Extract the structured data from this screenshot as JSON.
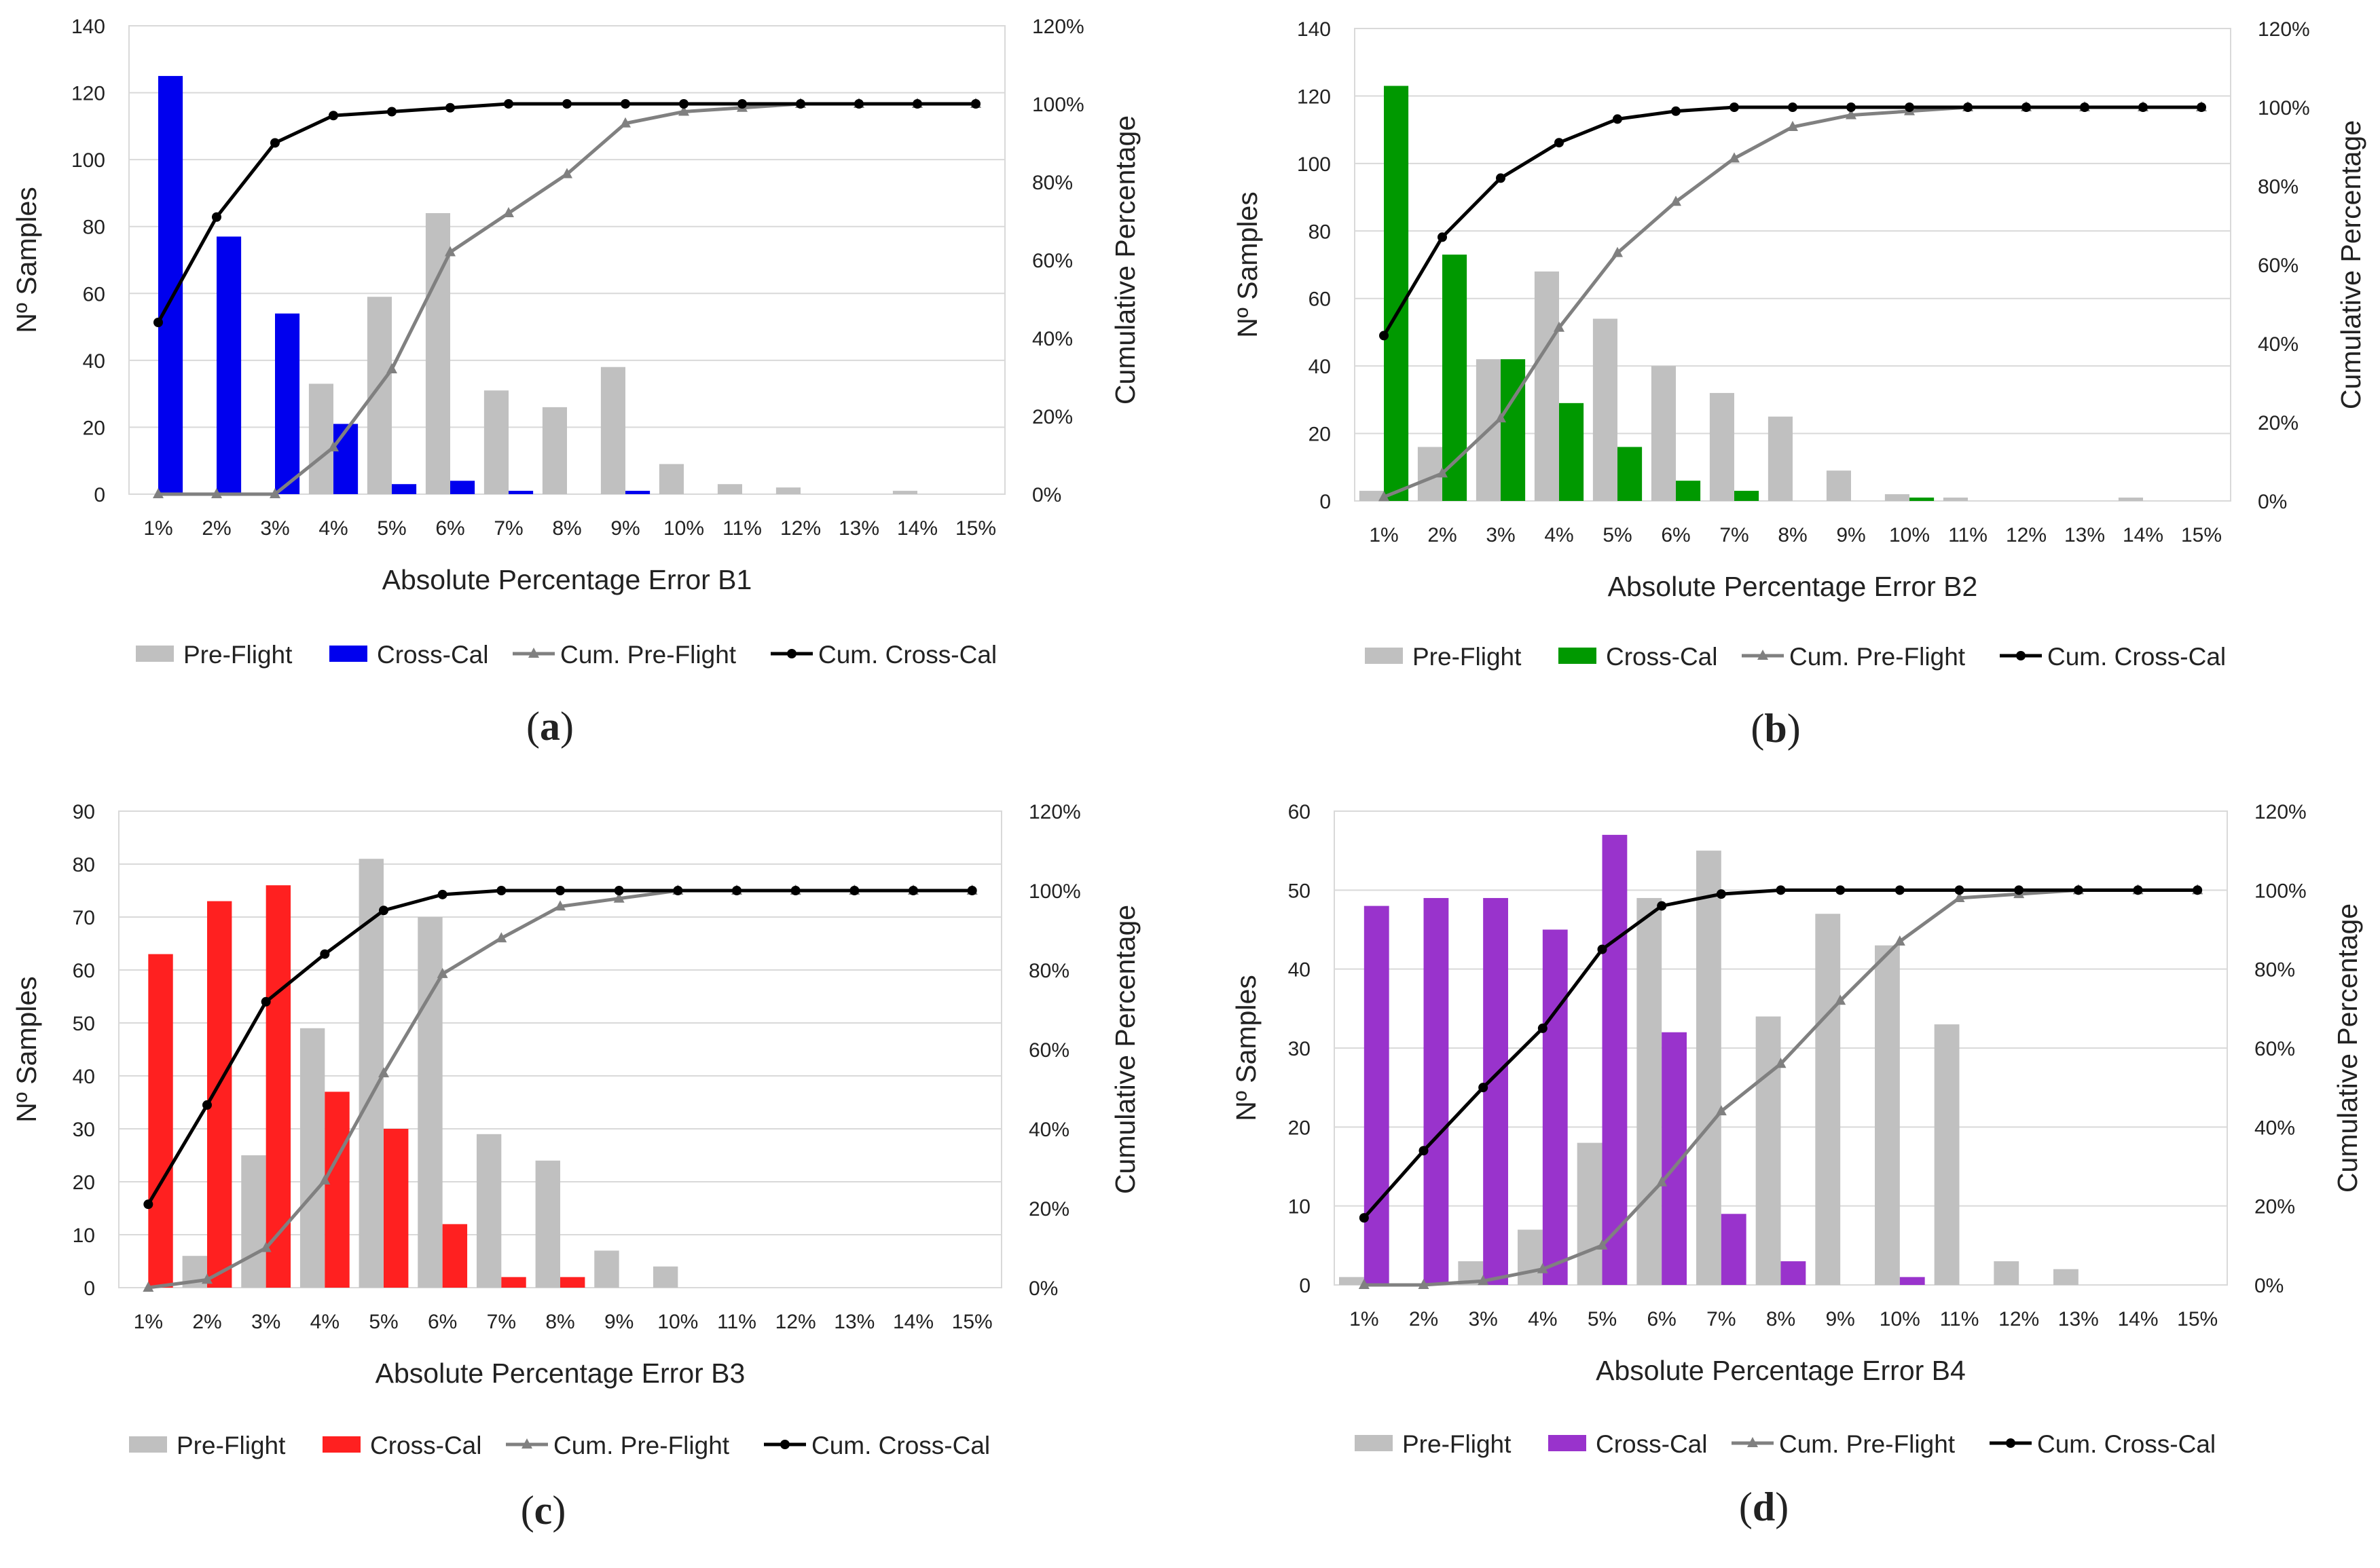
{
  "figure": {
    "panels": [
      {
        "id": "a",
        "label_open": "(",
        "label_letter": "a",
        "label_close": ")"
      },
      {
        "id": "b",
        "label_open": "(",
        "label_letter": "b",
        "label_close": ")"
      },
      {
        "id": "c",
        "label_open": "(",
        "label_letter": "c",
        "label_close": ")"
      },
      {
        "id": "d",
        "label_open": "(",
        "label_letter": "d",
        "label_close": ")"
      }
    ]
  },
  "chart_data": [
    {
      "type": "bar",
      "title": "",
      "xlabel": "Absolute Percentage Error B1",
      "ylabel": "Nº Samples",
      "y2label": "Cumulative Percentage",
      "categories": [
        "1%",
        "2%",
        "3%",
        "4%",
        "5%",
        "6%",
        "7%",
        "8%",
        "9%",
        "10%",
        "11%",
        "12%",
        "13%",
        "14%",
        "15%"
      ],
      "ylim": [
        0,
        140
      ],
      "yticks": [
        0,
        20,
        40,
        60,
        80,
        100,
        120,
        140
      ],
      "y2lim": [
        0,
        120
      ],
      "y2ticks": [
        "0%",
        "20%",
        "40%",
        "60%",
        "80%",
        "100%",
        "120%"
      ],
      "crosscal_color": "#0000ee",
      "series": [
        {
          "name": "Pre-Flight",
          "kind": "bar",
          "color": "#c0c0c0",
          "values": [
            0,
            0,
            0,
            33,
            59,
            84,
            31,
            26,
            38,
            9,
            3,
            2,
            0,
            1,
            0
          ]
        },
        {
          "name": "Cross-Cal",
          "kind": "bar",
          "color": "#0000ee",
          "values": [
            125,
            77,
            54,
            21,
            3,
            4,
            1,
            0,
            1,
            0,
            0,
            0,
            0,
            0,
            0
          ]
        },
        {
          "name": "Cum. Pre-Flight",
          "kind": "line",
          "marker": "triangle",
          "color": "#808080",
          "values": [
            0,
            0,
            0,
            12,
            32,
            62,
            72,
            82,
            95,
            98,
            99,
            100,
            100,
            100,
            100
          ]
        },
        {
          "name": "Cum. Cross-Cal",
          "kind": "line",
          "marker": "circle",
          "color": "#000000",
          "values": [
            44,
            71,
            90,
            97,
            98,
            99,
            100,
            100,
            100,
            100,
            100,
            100,
            100,
            100,
            100
          ]
        }
      ],
      "legend": [
        "Pre-Flight",
        "Cross-Cal",
        "Cum. Pre-Flight",
        "Cum. Cross-Cal"
      ],
      "legend_position": "bottom"
    },
    {
      "type": "bar",
      "title": "",
      "xlabel": "Absolute Percentage Error B2",
      "ylabel": "Nº Samples",
      "y2label": "Cumulative Percentage",
      "categories": [
        "1%",
        "2%",
        "3%",
        "4%",
        "5%",
        "6%",
        "7%",
        "8%",
        "9%",
        "10%",
        "11%",
        "12%",
        "13%",
        "14%",
        "15%"
      ],
      "ylim": [
        0,
        140
      ],
      "yticks": [
        0,
        20,
        40,
        60,
        80,
        100,
        120,
        140
      ],
      "y2lim": [
        0,
        120
      ],
      "y2ticks": [
        "0%",
        "20%",
        "40%",
        "60%",
        "80%",
        "100%",
        "120%"
      ],
      "crosscal_color": "#009900",
      "series": [
        {
          "name": "Pre-Flight",
          "kind": "bar",
          "color": "#c0c0c0",
          "values": [
            3,
            16,
            42,
            68,
            54,
            40,
            32,
            25,
            9,
            2,
            1,
            0,
            0,
            1,
            0
          ]
        },
        {
          "name": "Cross-Cal",
          "kind": "bar",
          "color": "#009900",
          "values": [
            123,
            73,
            42,
            29,
            16,
            6,
            3,
            0,
            0,
            1,
            0,
            0,
            0,
            0,
            0
          ]
        },
        {
          "name": "Cum. Pre-Flight",
          "kind": "line",
          "marker": "triangle",
          "color": "#808080",
          "values": [
            1,
            7,
            21,
            44,
            63,
            76,
            87,
            95,
            98,
            99,
            100,
            100,
            100,
            100,
            100
          ]
        },
        {
          "name": "Cum. Cross-Cal",
          "kind": "line",
          "marker": "circle",
          "color": "#000000",
          "values": [
            42,
            67,
            82,
            91,
            97,
            99,
            100,
            100,
            100,
            100,
            100,
            100,
            100,
            100,
            100
          ]
        }
      ],
      "legend": [
        "Pre-Flight",
        "Cross-Cal",
        "Cum. Pre-Flight",
        "Cum. Cross-Cal"
      ],
      "legend_position": "bottom"
    },
    {
      "type": "bar",
      "title": "",
      "xlabel": "Absolute Percentage Error B3",
      "ylabel": "Nº Samples",
      "y2label": "Cumulative Percentage",
      "categories": [
        "1%",
        "2%",
        "3%",
        "4%",
        "5%",
        "6%",
        "7%",
        "8%",
        "9%",
        "10%",
        "11%",
        "12%",
        "13%",
        "14%",
        "15%"
      ],
      "ylim": [
        0,
        90
      ],
      "yticks": [
        0,
        10,
        20,
        30,
        40,
        50,
        60,
        70,
        80,
        90
      ],
      "y2lim": [
        0,
        120
      ],
      "y2ticks": [
        "0%",
        "20%",
        "40%",
        "60%",
        "80%",
        "100%",
        "120%"
      ],
      "crosscal_color": "#ff2020",
      "series": [
        {
          "name": "Pre-Flight",
          "kind": "bar",
          "color": "#c0c0c0",
          "values": [
            0,
            6,
            25,
            49,
            81,
            70,
            29,
            24,
            7,
            4,
            0,
            0,
            0,
            0,
            0
          ]
        },
        {
          "name": "Cross-Cal",
          "kind": "bar",
          "color": "#ff2020",
          "values": [
            63,
            73,
            76,
            37,
            30,
            12,
            2,
            2,
            0,
            0,
            0,
            0,
            0,
            0,
            0
          ]
        },
        {
          "name": "Cum. Pre-Flight",
          "kind": "line",
          "marker": "triangle",
          "color": "#808080",
          "values": [
            0,
            2,
            10,
            27,
            54,
            79,
            88,
            96,
            98,
            100,
            100,
            100,
            100,
            100,
            100
          ]
        },
        {
          "name": "Cum. Cross-Cal",
          "kind": "line",
          "marker": "circle",
          "color": "#000000",
          "values": [
            21,
            46,
            72,
            84,
            95,
            99,
            100,
            100,
            100,
            100,
            100,
            100,
            100,
            100,
            100
          ]
        }
      ],
      "legend": [
        "Pre-Flight",
        "Cross-Cal",
        "Cum. Pre-Flight",
        "Cum. Cross-Cal"
      ],
      "legend_position": "bottom"
    },
    {
      "type": "bar",
      "title": "",
      "xlabel": "Absolute Percentage Error B4",
      "ylabel": "Nº Samples",
      "y2label": "Cumulative Percentage",
      "categories": [
        "1%",
        "2%",
        "3%",
        "4%",
        "5%",
        "6%",
        "7%",
        "8%",
        "9%",
        "10%",
        "11%",
        "12%",
        "13%",
        "14%",
        "15%"
      ],
      "ylim": [
        0,
        60
      ],
      "yticks": [
        0,
        10,
        20,
        30,
        40,
        50,
        60
      ],
      "y2lim": [
        0,
        120
      ],
      "y2ticks": [
        "0%",
        "20%",
        "40%",
        "60%",
        "80%",
        "100%",
        "120%"
      ],
      "crosscal_color": "#9933cc",
      "series": [
        {
          "name": "Pre-Flight",
          "kind": "bar",
          "color": "#c0c0c0",
          "values": [
            1,
            0,
            3,
            7,
            18,
            49,
            55,
            34,
            47,
            43,
            33,
            3,
            2,
            0,
            0
          ]
        },
        {
          "name": "Cross-Cal",
          "kind": "bar",
          "color": "#9933cc",
          "values": [
            48,
            49,
            49,
            45,
            57,
            32,
            9,
            3,
            0,
            1,
            0,
            0,
            0,
            0,
            0
          ]
        },
        {
          "name": "Cum. Pre-Flight",
          "kind": "line",
          "marker": "triangle",
          "color": "#808080",
          "values": [
            0,
            0,
            1,
            4,
            10,
            26,
            44,
            56,
            72,
            87,
            98,
            99,
            100,
            100,
            100
          ]
        },
        {
          "name": "Cum. Cross-Cal",
          "kind": "line",
          "marker": "circle",
          "color": "#000000",
          "values": [
            17,
            34,
            50,
            65,
            85,
            96,
            99,
            100,
            100,
            100,
            100,
            100,
            100,
            100,
            100
          ]
        }
      ],
      "legend": [
        "Pre-Flight",
        "Cross-Cal",
        "Cum. Pre-Flight",
        "Cum. Cross-Cal"
      ],
      "legend_position": "bottom"
    }
  ]
}
